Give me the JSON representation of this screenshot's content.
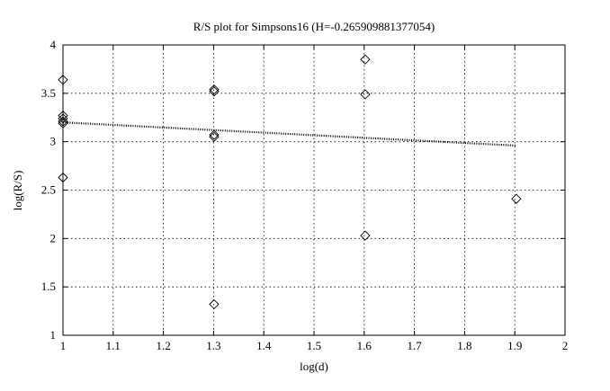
{
  "chart_data": {
    "type": "scatter",
    "title": "R/S plot for Simpsons16 (H=-0.265909881377054)",
    "x_label": "log(d)",
    "y_label": "log(R/S)",
    "xlim": [
      1,
      2
    ],
    "ylim": [
      1,
      4
    ],
    "xticks": [
      1,
      1.1,
      1.2,
      1.3,
      1.4,
      1.5,
      1.6,
      1.7,
      1.8,
      1.9,
      2
    ],
    "yticks": [
      1,
      1.5,
      2,
      2.5,
      3,
      3.5,
      4
    ],
    "grid": true,
    "series": [
      {
        "type": "scatter",
        "marker": "diamond",
        "color": "#000000",
        "x": [
          1,
          1,
          1,
          1,
          1,
          1,
          1.301,
          1.301,
          1.301,
          1.301,
          1.301,
          1.602,
          1.602,
          1.602,
          1.903
        ],
        "values": [
          3.64,
          3.27,
          3.24,
          3.19,
          3.21,
          2.63,
          3.54,
          3.52,
          3.07,
          3.05,
          1.32,
          3.85,
          3.49,
          2.03,
          2.41
        ]
      },
      {
        "type": "line",
        "style": "dotted",
        "color": "#000000",
        "x": [
          1,
          1.903
        ],
        "values": [
          3.2,
          2.96
        ]
      }
    ]
  }
}
